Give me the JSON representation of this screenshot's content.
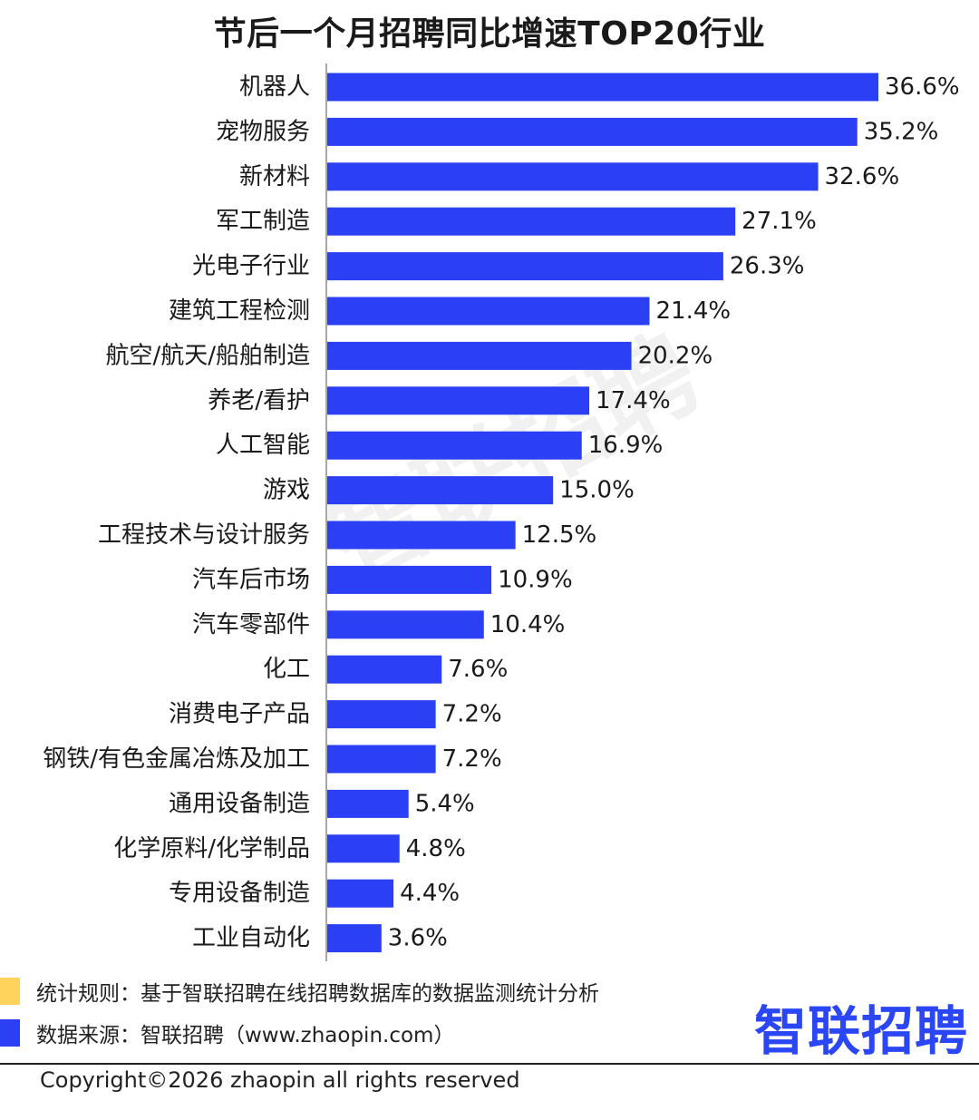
{
  "title": "节后一个月招聘同比增速TOP20行业",
  "chart_data": {
    "type": "bar",
    "orientation": "horizontal",
    "categories": [
      "机器人",
      "宠物服务",
      "新材料",
      "军工制造",
      "光电子行业",
      "建筑工程检测",
      "航空/航天/船舶制造",
      "养老/看护",
      "人工智能",
      "游戏",
      "工程技术与设计服务",
      "汽车后市场",
      "汽车零部件",
      "化工",
      "消费电子产品",
      "钢铁/有色金属冶炼及加工",
      "通用设备制造",
      "化学原料/化学制品",
      "专用设备制造",
      "工业自动化"
    ],
    "values": [
      36.6,
      35.2,
      32.6,
      27.1,
      26.3,
      21.4,
      20.2,
      17.4,
      16.9,
      15.0,
      12.5,
      10.9,
      10.4,
      7.6,
      7.2,
      7.2,
      5.4,
      4.8,
      4.4,
      3.6
    ],
    "value_labels": [
      "36.6%",
      "35.2%",
      "32.6%",
      "27.1%",
      "26.3%",
      "21.4%",
      "20.2%",
      "17.4%",
      "16.9%",
      "15.0%",
      "12.5%",
      "10.9%",
      "10.4%",
      "7.6%",
      "7.2%",
      "7.2%",
      "5.4%",
      "4.8%",
      "4.4%",
      "3.6%"
    ],
    "xlim": [
      0,
      36.6
    ],
    "grid": false,
    "bar_color": "#2b3ff5"
  },
  "watermark": "智联招聘",
  "notes": [
    {
      "text": "统计规则：基于智联招聘在线招聘数据库的数据监测统计分析",
      "color": "#ffd35c"
    },
    {
      "text": "数据来源：智联招聘（www.zhaopin.com）",
      "color": "#2b3ff5"
    }
  ],
  "brand": "智联招聘",
  "copyright": "Copyright©2026 zhaopin all rights reserved"
}
